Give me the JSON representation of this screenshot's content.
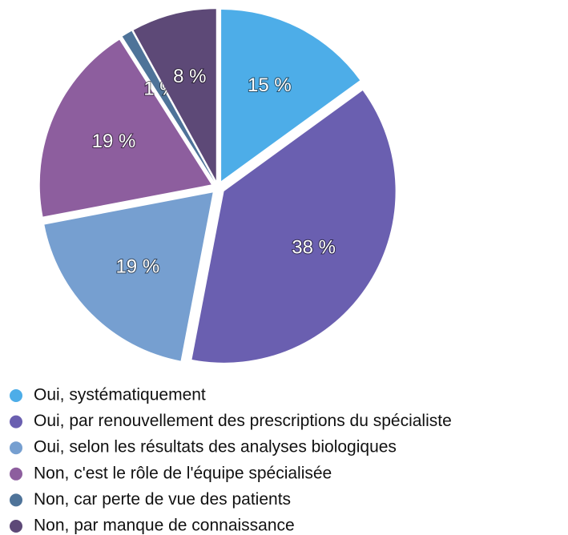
{
  "chart_data": {
    "type": "pie",
    "categories": [
      "Oui, systématiquement",
      "Oui, par renouvellement des prescriptions du spécialiste",
      "Oui, selon les résultats des analyses biologiques",
      "Non, c'est le rôle de l'équipe spécialisée",
      "Non, car perte de vue des patients",
      "Non, par manque de connaissance"
    ],
    "values": [
      15,
      38,
      19,
      19,
      1,
      8
    ],
    "value_labels": [
      "15 %",
      "38 %",
      "19 %",
      "19 %",
      "1 %",
      "8 %"
    ],
    "colors": [
      "#4dade8",
      "#6a5fb0",
      "#769fd0",
      "#8d5e9e",
      "#4e7399",
      "#5d4977"
    ]
  }
}
